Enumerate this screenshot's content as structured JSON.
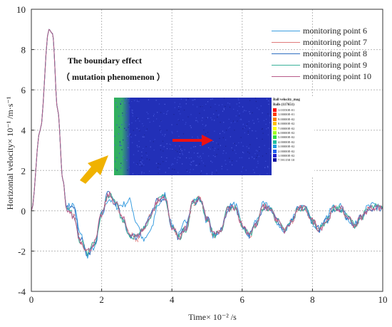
{
  "chart_data": {
    "type": "line",
    "xlabel": "Time× 10⁻² /s",
    "ylabel": "Horizontal velocity× 10⁻¹ /m·s⁻¹",
    "xlim": [
      0,
      10
    ],
    "ylim": [
      -4,
      10
    ],
    "xticks": [
      "0",
      "2",
      "4",
      "6",
      "8",
      "10"
    ],
    "yticks": [
      "-4",
      "-2",
      "0",
      "2",
      "4",
      "6",
      "8",
      "10"
    ],
    "grid": true,
    "legend_position": "top-right",
    "series": [
      {
        "name": "monitoring point 6",
        "color": "#3b9ee0",
        "x": [
          0,
          0.25,
          0.5,
          0.6,
          0.75,
          0.9,
          1.0,
          1.2,
          1.4,
          1.6,
          1.8,
          2.0,
          2.2,
          2.4,
          2.6,
          2.8,
          3.0,
          3.2,
          3.4,
          3.6,
          3.8,
          4.0,
          4.2,
          4.4,
          4.6,
          4.8,
          5.0,
          5.2,
          5.4,
          5.6,
          5.8,
          6.0,
          6.2,
          6.4,
          6.6,
          6.8,
          7.0,
          7.2,
          7.4,
          7.6,
          7.8,
          8.0,
          8.2,
          8.4,
          8.6,
          8.8,
          9.0,
          9.2,
          9.4,
          9.6,
          9.8,
          10.0
        ],
        "y": [
          0,
          4.0,
          9.0,
          8.8,
          5.0,
          1.5,
          0.2,
          0.3,
          -1.2,
          -2.2,
          -1.8,
          -0.2,
          0.6,
          0.2,
          0.3,
          0.5,
          -0.6,
          -1.5,
          -1.0,
          0.3,
          0.8,
          -0.7,
          -1.2,
          -0.5,
          0.5,
          0.6,
          -0.5,
          -1.3,
          -0.9,
          0.2,
          0.3,
          -0.8,
          -1.2,
          -0.5,
          0.3,
          0.2,
          -0.6,
          -1.1,
          -0.4,
          0.2,
          0.1,
          -0.6,
          -0.9,
          -0.3,
          0.2,
          0.2,
          -0.4,
          -0.7,
          -0.2,
          0.2,
          0.3,
          0.1
        ]
      },
      {
        "name": "monitoring point 7",
        "color": "#e07a7a",
        "x": [
          0,
          0.25,
          0.5,
          0.6,
          0.75,
          0.9,
          1.0,
          1.2,
          1.4,
          1.6,
          1.8,
          2.0,
          2.2,
          2.4,
          2.6,
          2.8,
          3.0,
          3.2,
          3.4,
          3.6,
          3.8,
          4.0,
          4.2,
          4.4,
          4.6,
          4.8,
          5.0,
          5.2,
          5.4,
          5.6,
          5.8,
          6.0,
          6.2,
          6.4,
          6.6,
          6.8,
          7.0,
          7.2,
          7.4,
          7.6,
          7.8,
          8.0,
          8.2,
          8.4,
          8.6,
          8.8,
          9.0,
          9.2,
          9.4,
          9.6,
          9.8,
          10.0
        ],
        "y": [
          0,
          4.0,
          9.0,
          8.8,
          5.0,
          1.5,
          0.1,
          -0.3,
          -1.5,
          -2.1,
          -1.6,
          -0.2,
          0.8,
          0.4,
          -0.4,
          -1.2,
          -1.4,
          -0.9,
          -0.2,
          0.5,
          0.7,
          -0.8,
          -1.3,
          -0.9,
          0.4,
          0.6,
          -0.4,
          -1.2,
          -1.0,
          0.1,
          0.2,
          -0.7,
          -1.2,
          -0.7,
          0.2,
          0.1,
          -0.5,
          -1.0,
          -0.6,
          0.1,
          0.1,
          -0.5,
          -0.9,
          -0.5,
          0.1,
          0.1,
          -0.3,
          -0.7,
          -0.3,
          0.1,
          0.2,
          0.1
        ]
      },
      {
        "name": "monitoring point 8",
        "color": "#2f6fc0",
        "x": [
          0,
          0.25,
          0.5,
          0.6,
          0.75,
          0.9,
          1.0,
          1.2,
          1.4,
          1.6,
          1.8,
          2.0,
          2.2,
          2.4,
          2.6,
          2.8,
          3.0,
          3.2,
          3.4,
          3.6,
          3.8,
          4.0,
          4.2,
          4.4,
          4.6,
          4.8,
          5.0,
          5.2,
          5.4,
          5.6,
          5.8,
          6.0,
          6.2,
          6.4,
          6.6,
          6.8,
          7.0,
          7.2,
          7.4,
          7.6,
          7.8,
          8.0,
          8.2,
          8.4,
          8.6,
          8.8,
          9.0,
          9.2,
          9.4,
          9.6,
          9.8,
          10.0
        ],
        "y": [
          0,
          4.0,
          9.0,
          8.8,
          5.0,
          1.5,
          0.2,
          0.1,
          -1.4,
          -2.2,
          -1.7,
          -0.1,
          0.9,
          0.4,
          -0.5,
          -1.2,
          -1.3,
          -0.8,
          -0.2,
          0.5,
          0.7,
          -0.8,
          -1.3,
          -0.8,
          0.4,
          0.6,
          -0.4,
          -1.2,
          -1.0,
          0.1,
          0.2,
          -0.7,
          -1.2,
          -0.7,
          0.2,
          0.1,
          -0.5,
          -1.0,
          -0.6,
          0.1,
          0.1,
          -0.5,
          -0.9,
          -0.5,
          0.1,
          0.1,
          -0.3,
          -0.7,
          -0.3,
          0.1,
          0.2,
          0.1
        ]
      },
      {
        "name": "monitoring point 9",
        "color": "#3ab29a",
        "x": [
          0,
          0.25,
          0.5,
          0.6,
          0.75,
          0.9,
          1.0,
          1.2,
          1.4,
          1.6,
          1.8,
          2.0,
          2.2,
          2.4,
          2.6,
          2.8,
          3.0,
          3.2,
          3.4,
          3.6,
          3.8,
          4.0,
          4.2,
          4.4,
          4.6,
          4.8,
          5.0,
          5.2,
          5.4,
          5.6,
          5.8,
          6.0,
          6.2,
          6.4,
          6.6,
          6.8,
          7.0,
          7.2,
          7.4,
          7.6,
          7.8,
          8.0,
          8.2,
          8.4,
          8.6,
          8.8,
          9.0,
          9.2,
          9.4,
          9.6,
          9.8,
          10.0
        ],
        "y": [
          0,
          4.0,
          9.0,
          8.8,
          5.0,
          1.5,
          0.1,
          -0.2,
          -1.5,
          -2.1,
          -1.6,
          -0.2,
          0.8,
          0.4,
          -0.4,
          -1.2,
          -1.3,
          -0.9,
          -0.2,
          0.5,
          0.7,
          -0.8,
          -1.3,
          -0.9,
          0.4,
          0.6,
          -0.4,
          -1.2,
          -1.0,
          0.1,
          0.2,
          -0.7,
          -1.2,
          -0.7,
          0.2,
          0.1,
          -0.5,
          -1.0,
          -0.6,
          0.1,
          0.1,
          -0.5,
          -0.9,
          -0.5,
          0.1,
          0.1,
          -0.3,
          -0.7,
          -0.3,
          0.1,
          0.2,
          0.1
        ]
      },
      {
        "name": "monitoring point 10",
        "color": "#b85a8a",
        "x": [
          0,
          0.25,
          0.5,
          0.6,
          0.75,
          0.9,
          1.0,
          1.2,
          1.4,
          1.6,
          1.8,
          2.0,
          2.2,
          2.4,
          2.6,
          2.8,
          3.0,
          3.2,
          3.4,
          3.6,
          3.8,
          4.0,
          4.2,
          4.4,
          4.6,
          4.8,
          5.0,
          5.2,
          5.4,
          5.6,
          5.8,
          6.0,
          6.2,
          6.4,
          6.6,
          6.8,
          7.0,
          7.2,
          7.4,
          7.6,
          7.8,
          8.0,
          8.2,
          8.4,
          8.6,
          8.8,
          9.0,
          9.2,
          9.4,
          9.6,
          9.8,
          10.0
        ],
        "y": [
          0,
          4.0,
          9.0,
          8.8,
          5.0,
          1.5,
          0.1,
          -0.3,
          -1.5,
          -2.0,
          -1.6,
          -0.2,
          0.8,
          0.4,
          -0.4,
          -1.1,
          -1.3,
          -0.9,
          -0.2,
          0.5,
          0.7,
          -0.8,
          -1.3,
          -0.9,
          0.4,
          0.6,
          -0.4,
          -1.2,
          -1.0,
          0.1,
          0.2,
          -0.7,
          -1.1,
          -0.7,
          0.2,
          0.1,
          -0.5,
          -1.0,
          -0.6,
          0.1,
          0.1,
          -0.5,
          -0.9,
          -0.5,
          0.1,
          0.1,
          -0.3,
          -0.7,
          -0.3,
          0.1,
          0.2,
          0.1
        ]
      }
    ],
    "annotations": [
      "The boundary effect",
      "（ mutation phenomenon ）"
    ],
    "inset": {
      "legend_title": "Ball velocity_mag",
      "legend_subtitle": "Balls (117651)",
      "legend_values": [
        "1.03550E-01",
        "1.00000E-01",
        "9.00000E-02",
        "8.00000E-02",
        "7.00000E-02",
        "6.00000E-02",
        "5.00000E-02",
        "4.00000E-02",
        "3.00000E-02",
        "2.00000E-02",
        "1.00000E-02",
        "7.59115E-10"
      ],
      "legend_colors": [
        "#ff0000",
        "#ff3a00",
        "#ff8000",
        "#ffc000",
        "#ffff00",
        "#a0ff20",
        "#30e040",
        "#20c0a0",
        "#20a0e0",
        "#2060f0",
        "#2020d0",
        "#1010a0"
      ]
    }
  }
}
